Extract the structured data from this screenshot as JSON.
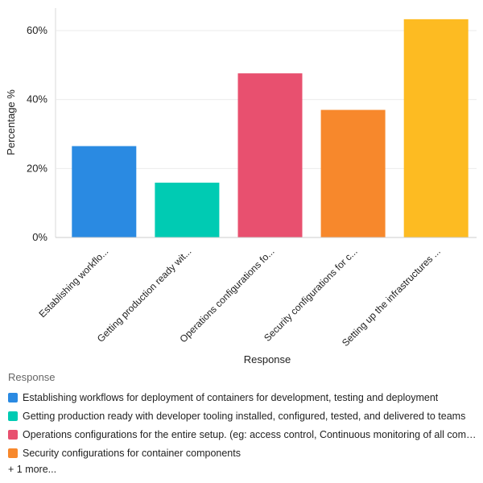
{
  "chart_data": {
    "type": "bar",
    "categories": [
      "Establishing workflows for deployment of containers for development, testing and deployment",
      "Getting production ready with developer tooling installed, configured, tested, and delivered to teams",
      "Operations configurations for the entire setup. (eg: access control, Continuous monitoring of all components)",
      "Security configurations for container components",
      "Setting up the infrastructures"
    ],
    "tick_labels": [
      "Establishing workflo...",
      "Getting production ready wit...",
      "Operations configurations fo...",
      "Security configurations for c...",
      "Setting up the infrastructures ..."
    ],
    "values": [
      26.5,
      15.9,
      47.6,
      37.0,
      63.3
    ],
    "colors": [
      "#2a8ae2",
      "#00cbb3",
      "#e8506f",
      "#f7882c",
      "#fdbb22"
    ],
    "xlabel": "Response",
    "ylabel": "Percentage %",
    "ylim": [
      0,
      65
    ],
    "yticks": [
      0,
      20,
      40,
      60
    ],
    "ytick_labels": [
      "0%",
      "20%",
      "40%",
      "60%"
    ],
    "grid": true
  },
  "legend": {
    "title": "Response",
    "items": [
      "Establishing workflows for deployment of containers for development, testing and deployment",
      "Getting production ready with developer tooling installed, configured, tested, and delivered to teams",
      "Operations configurations for the entire setup. (eg: access control, Continuous monitoring of all components)",
      "Security configurations for container components"
    ],
    "more": "+ 1 more..."
  }
}
